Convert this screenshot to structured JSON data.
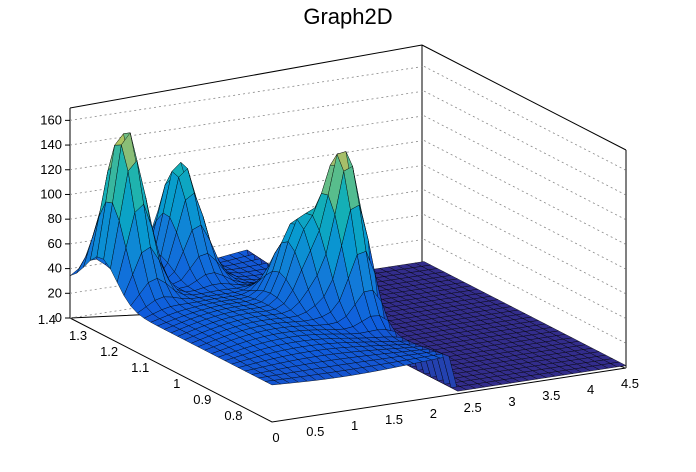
{
  "chart_data": {
    "type": "surface",
    "title": "Graph2D",
    "xlabel": "",
    "ylabel": "",
    "zlabel": "",
    "xlim": [
      0,
      4.5
    ],
    "ylim": [
      0.75,
      1.4
    ],
    "zlim": [
      0,
      170
    ],
    "x_ticks": [
      "0",
      "0.5",
      "1",
      "1.5",
      "2",
      "2.5",
      "3",
      "3.5",
      "4",
      "4.5"
    ],
    "y_ticks": [
      "0.8",
      "0.9",
      "1",
      "1.1",
      "1.2",
      "1.3",
      "1.4"
    ],
    "z_ticks": [
      "0",
      "20",
      "40",
      "60",
      "80",
      "100",
      "120",
      "140",
      "160"
    ],
    "grid": true,
    "colormap": "viridis-like (blue to yellow)",
    "peaks": [
      {
        "x": 0.3,
        "y": 1.3,
        "z": 165
      },
      {
        "x": 2.1,
        "y": 1.05,
        "z": 165
      },
      {
        "x": 1.7,
        "y": 1.1,
        "z": 95
      },
      {
        "x": 1.2,
        "y": 1.35,
        "z": 125
      }
    ]
  }
}
